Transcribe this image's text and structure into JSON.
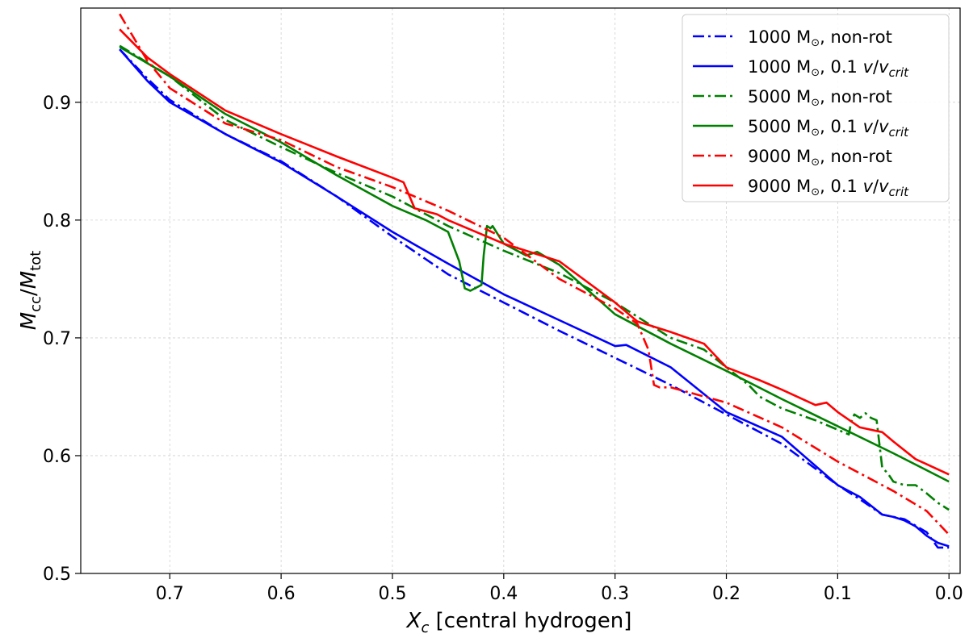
{
  "chart_data": {
    "type": "line",
    "title": "",
    "xlabel": "X_c [central hydrogen]",
    "xlabel_parts": {
      "symbol": "X",
      "sub": "c",
      "rest": " [central hydrogen]"
    },
    "ylabel": "M_cc/M_tot",
    "ylabel_parts": {
      "sym1": "M",
      "sub1": "cc",
      "slash": "/",
      "sym2": "M",
      "sub2": "tot"
    },
    "xlim": [
      0.78,
      -0.01
    ],
    "ylim": [
      0.5,
      0.98
    ],
    "x_inverted": true,
    "grid": true,
    "legend_position": "top-right",
    "xticks": [
      0.7,
      0.6,
      0.5,
      0.4,
      0.3,
      0.2,
      0.1,
      0.0
    ],
    "xtick_labels": [
      "0.7",
      "0.6",
      "0.5",
      "0.4",
      "0.3",
      "0.2",
      "0.1",
      "0.0"
    ],
    "yticks": [
      0.5,
      0.6,
      0.7,
      0.8,
      0.9
    ],
    "ytick_labels": [
      "0.5",
      "0.6",
      "0.7",
      "0.8",
      "0.9"
    ],
    "series": [
      {
        "name": "1000 M⊙, non-rot",
        "legend": {
          "mass": "1000 M",
          "sun": "⊙",
          "tail": ", non-rot",
          "rot": false
        },
        "color": "#0000ff",
        "style": "dashdot",
        "x": [
          0.745,
          0.72,
          0.7,
          0.65,
          0.6,
          0.55,
          0.5,
          0.45,
          0.4,
          0.35,
          0.3,
          0.25,
          0.2,
          0.15,
          0.1,
          0.08,
          0.06,
          0.04,
          0.02,
          0.01,
          0.0
        ],
        "y": [
          0.945,
          0.92,
          0.902,
          0.873,
          0.85,
          0.82,
          0.786,
          0.754,
          0.73,
          0.706,
          0.683,
          0.66,
          0.635,
          0.61,
          0.575,
          0.563,
          0.55,
          0.546,
          0.535,
          0.522,
          0.522
        ]
      },
      {
        "name": "1000 M⊙, 0.1 v/v_crit",
        "legend": {
          "mass": "1000 M",
          "sun": "⊙",
          "tail": ", 0.1 ",
          "rot": true
        },
        "color": "#0000ff",
        "style": "solid",
        "x": [
          0.745,
          0.72,
          0.7,
          0.65,
          0.6,
          0.55,
          0.5,
          0.45,
          0.4,
          0.35,
          0.3,
          0.29,
          0.25,
          0.2,
          0.15,
          0.1,
          0.08,
          0.06,
          0.05,
          0.04,
          0.03,
          0.02,
          0.01,
          0.0
        ],
        "y": [
          0.945,
          0.918,
          0.9,
          0.873,
          0.849,
          0.82,
          0.79,
          0.763,
          0.737,
          0.715,
          0.693,
          0.694,
          0.675,
          0.637,
          0.616,
          0.575,
          0.565,
          0.55,
          0.548,
          0.545,
          0.54,
          0.532,
          0.526,
          0.523
        ]
      },
      {
        "name": "5000 M⊙, non-rot",
        "legend": {
          "mass": "5000 M",
          "sun": "⊙",
          "tail": ", non-rot",
          "rot": false
        },
        "color": "#008000",
        "style": "dashdot",
        "x": [
          0.745,
          0.7,
          0.65,
          0.6,
          0.55,
          0.5,
          0.45,
          0.4,
          0.35,
          0.3,
          0.25,
          0.22,
          0.2,
          0.18,
          0.17,
          0.15,
          0.12,
          0.1,
          0.09,
          0.088,
          0.085,
          0.08,
          0.075,
          0.07,
          0.065,
          0.06,
          0.055,
          0.05,
          0.04,
          0.03,
          0.02,
          0.01,
          0.0
        ],
        "y": [
          0.948,
          0.922,
          0.885,
          0.862,
          0.84,
          0.82,
          0.795,
          0.774,
          0.755,
          0.73,
          0.7,
          0.69,
          0.675,
          0.66,
          0.65,
          0.64,
          0.63,
          0.622,
          0.618,
          0.628,
          0.635,
          0.632,
          0.636,
          0.632,
          0.63,
          0.59,
          0.585,
          0.578,
          0.575,
          0.575,
          0.568,
          0.56,
          0.554
        ]
      },
      {
        "name": "5000 M⊙, 0.1 v/v_crit",
        "legend": {
          "mass": "5000 M",
          "sun": "⊙",
          "tail": ", 0.1 ",
          "rot": true
        },
        "color": "#008000",
        "style": "solid",
        "x": [
          0.745,
          0.7,
          0.65,
          0.6,
          0.55,
          0.5,
          0.47,
          0.45,
          0.44,
          0.435,
          0.43,
          0.42,
          0.418,
          0.415,
          0.412,
          0.41,
          0.4,
          0.38,
          0.37,
          0.35,
          0.3,
          0.25,
          0.2,
          0.15,
          0.1,
          0.05,
          0.0
        ],
        "y": [
          0.947,
          0.922,
          0.89,
          0.866,
          0.838,
          0.812,
          0.8,
          0.79,
          0.765,
          0.742,
          0.74,
          0.745,
          0.77,
          0.795,
          0.793,
          0.795,
          0.78,
          0.77,
          0.773,
          0.762,
          0.72,
          0.695,
          0.672,
          0.648,
          0.625,
          0.602,
          0.578
        ]
      },
      {
        "name": "9000 M⊙, non-rot",
        "legend": {
          "mass": "9000 M",
          "sun": "⊙",
          "tail": ", non-rot",
          "rot": false
        },
        "color": "#ff0000",
        "style": "dashdot",
        "x": [
          0.745,
          0.72,
          0.7,
          0.65,
          0.6,
          0.55,
          0.5,
          0.45,
          0.4,
          0.35,
          0.3,
          0.28,
          0.27,
          0.265,
          0.26,
          0.25,
          0.2,
          0.15,
          0.1,
          0.05,
          0.02,
          0.0
        ],
        "y": [
          0.975,
          0.935,
          0.912,
          0.882,
          0.868,
          0.845,
          0.828,
          0.808,
          0.785,
          0.75,
          0.725,
          0.712,
          0.69,
          0.66,
          0.658,
          0.658,
          0.645,
          0.624,
          0.595,
          0.57,
          0.553,
          0.533
        ]
      },
      {
        "name": "9000 M⊙, 0.1 v/v_crit",
        "legend": {
          "mass": "9000 M",
          "sun": "⊙",
          "tail": ", 0.1 ",
          "rot": true
        },
        "color": "#ff0000",
        "style": "solid",
        "x": [
          0.745,
          0.72,
          0.7,
          0.65,
          0.6,
          0.55,
          0.5,
          0.49,
          0.48,
          0.46,
          0.45,
          0.4,
          0.35,
          0.3,
          0.28,
          0.25,
          0.22,
          0.2,
          0.17,
          0.15,
          0.12,
          0.11,
          0.1,
          0.08,
          0.06,
          0.05,
          0.03,
          0.0
        ],
        "y": [
          0.962,
          0.938,
          0.924,
          0.893,
          0.873,
          0.854,
          0.836,
          0.832,
          0.81,
          0.805,
          0.8,
          0.78,
          0.765,
          0.73,
          0.714,
          0.705,
          0.695,
          0.675,
          0.664,
          0.656,
          0.643,
          0.645,
          0.637,
          0.624,
          0.62,
          0.612,
          0.597,
          0.584
        ]
      }
    ]
  }
}
